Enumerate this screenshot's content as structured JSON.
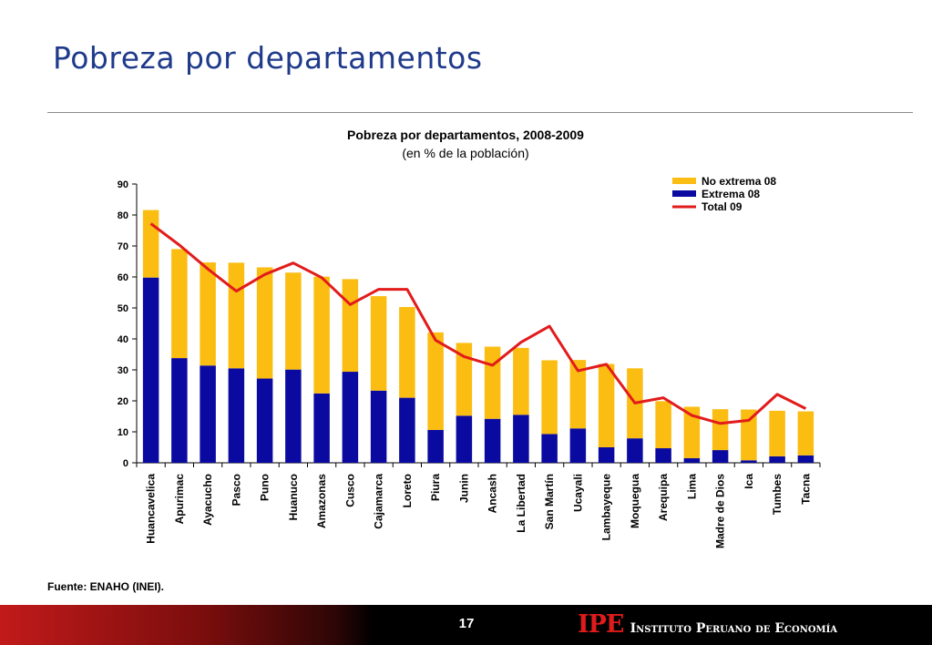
{
  "slide": {
    "title": "Pobreza por departamentos",
    "source": "Fuente: ENAHO (INEI).",
    "page_number": "17",
    "logo": "IPE",
    "organization": "Instituto Peruano de Economía"
  },
  "chart_data": {
    "type": "bar",
    "stacked": true,
    "title": "Pobreza por departamentos, 2008-2009",
    "subtitle": "(en % de la población)",
    "xlabel": "",
    "ylabel": "",
    "ylim": [
      0,
      90
    ],
    "yticks": [
      0,
      10,
      20,
      30,
      40,
      50,
      60,
      70,
      80,
      90
    ],
    "grid": false,
    "legend_position": "top-right",
    "categories": [
      "Huancavelica",
      "Apurimac",
      "Ayacucho",
      "Pasco",
      "Puno",
      "Huanuco",
      "Amazonas",
      "Cusco",
      "Cajamarca",
      "Loreto",
      "Piura",
      "Junin",
      "Ancash",
      "La Libertad",
      "San Martín",
      "Ucayali",
      "Lambayeque",
      "Moquegua",
      "Arequipa",
      "Lima",
      "Madre de Dios",
      "Ica",
      "Tumbes",
      "Tacna"
    ],
    "series": [
      {
        "name": "No extrema 08",
        "kind": "bar",
        "color": "#fbbd12",
        "values": [
          21.8,
          35.2,
          33.3,
          34.1,
          35.9,
          31.3,
          37.7,
          29.9,
          30.5,
          29.3,
          31.5,
          23.5,
          23.3,
          21.6,
          23.8,
          22.1,
          26.9,
          22.6,
          15.2,
          16.6,
          13.2,
          16.4,
          14.7,
          14.2
        ]
      },
      {
        "name": "Extrema 08",
        "kind": "bar",
        "color": "#0a0aa0",
        "values": [
          59.8,
          33.8,
          31.4,
          30.5,
          27.2,
          30.1,
          22.4,
          29.4,
          23.3,
          21.0,
          10.6,
          15.2,
          14.2,
          15.5,
          9.3,
          11.1,
          5.0,
          7.9,
          4.7,
          1.5,
          4.1,
          0.8,
          2.1,
          2.4
        ]
      },
      {
        "name": "Total 09",
        "kind": "line",
        "color": "#e21b1b",
        "values": [
          77.2,
          70.3,
          62.6,
          55.4,
          60.8,
          64.5,
          59.8,
          51.1,
          56.0,
          56.0,
          39.6,
          34.3,
          31.5,
          38.9,
          44.1,
          29.7,
          31.8,
          19.3,
          21.0,
          15.3,
          12.7,
          13.7,
          22.1,
          17.5
        ]
      }
    ]
  }
}
